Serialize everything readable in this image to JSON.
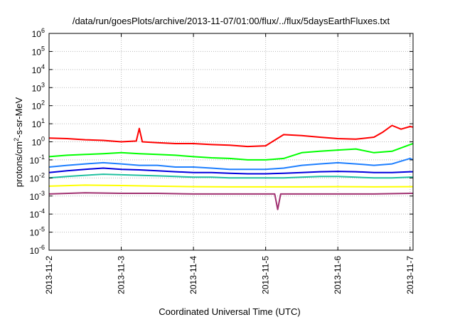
{
  "chart_data": {
    "type": "line",
    "title": "/data/run/goesPlots/archive/2013-11-07/01:00/flux/../flux/5daysEarthFluxes.txt",
    "xlabel": "Coordinated Universal Time (UTC)",
    "ylabel_parts": {
      "pre": "protons/cm",
      "sup": "2",
      "post": "-s-sr-MeV"
    },
    "y_scale": "log",
    "ylim": [
      1e-06,
      1000000.0
    ],
    "y_ticks": [
      {
        "base": "10",
        "exp": "-6",
        "value": -6
      },
      {
        "base": "10",
        "exp": "-5",
        "value": -5
      },
      {
        "base": "10",
        "exp": "-4",
        "value": -4
      },
      {
        "base": "10",
        "exp": "-3",
        "value": -3
      },
      {
        "base": "10",
        "exp": "-2",
        "value": -2
      },
      {
        "base": "10",
        "exp": "-1",
        "value": -1
      },
      {
        "base": "10",
        "exp": "0",
        "value": 0
      },
      {
        "base": "10",
        "exp": "1",
        "value": 1
      },
      {
        "base": "10",
        "exp": "2",
        "value": 2
      },
      {
        "base": "10",
        "exp": "3",
        "value": 3
      },
      {
        "base": "10",
        "exp": "4",
        "value": 4
      },
      {
        "base": "10",
        "exp": "5",
        "value": 5
      },
      {
        "base": "10",
        "exp": "6",
        "value": 6
      }
    ],
    "x_range": [
      "2013-11-02",
      "2013-11-07T01:00"
    ],
    "x_ticks": [
      "2013-11-2",
      "2013-11-3",
      "2013-11-4",
      "2013-11-5",
      "2013-11-6",
      "2013-11-7"
    ],
    "grid": true,
    "legend": "none",
    "series": [
      {
        "color": "#ff0000",
        "x": [
          "2013-11-02T00:00",
          "2013-11-02T06:00",
          "2013-11-02T12:00",
          "2013-11-02T18:00",
          "2013-11-03T00:00",
          "2013-11-03T05:00",
          "2013-11-03T06:00",
          "2013-11-03T07:00",
          "2013-11-03T12:00",
          "2013-11-03T18:00",
          "2013-11-04T00:00",
          "2013-11-04T06:00",
          "2013-11-04T12:00",
          "2013-11-04T18:00",
          "2013-11-05T00:00",
          "2013-11-05T06:00",
          "2013-11-05T12:00",
          "2013-11-05T18:00",
          "2013-11-06T00:00",
          "2013-11-06T06:00",
          "2013-11-06T12:00",
          "2013-11-06T15:00",
          "2013-11-06T18:00",
          "2013-11-06T21:00",
          "2013-11-07T00:00",
          "2013-11-07T01:00"
        ],
        "y": [
          1.6,
          1.5,
          1.3,
          1.2,
          1.0,
          1.1,
          5.5,
          1.0,
          0.9,
          0.8,
          0.8,
          0.7,
          0.65,
          0.55,
          0.6,
          2.5,
          2.2,
          1.8,
          1.5,
          1.4,
          1.8,
          3.5,
          8.0,
          5.0,
          7.0,
          6.5
        ]
      },
      {
        "color": "#00ff00",
        "x": [
          "2013-11-02T00:00",
          "2013-11-02T06:00",
          "2013-11-02T12:00",
          "2013-11-02T18:00",
          "2013-11-03T00:00",
          "2013-11-03T06:00",
          "2013-11-03T12:00",
          "2013-11-03T18:00",
          "2013-11-04T00:00",
          "2013-11-04T06:00",
          "2013-11-04T12:00",
          "2013-11-04T18:00",
          "2013-11-05T00:00",
          "2013-11-05T06:00",
          "2013-11-05T12:00",
          "2013-11-05T18:00",
          "2013-11-06T00:00",
          "2013-11-06T06:00",
          "2013-11-06T12:00",
          "2013-11-06T18:00",
          "2013-11-07T00:00",
          "2013-11-07T01:00"
        ],
        "y": [
          0.15,
          0.18,
          0.2,
          0.22,
          0.25,
          0.22,
          0.2,
          0.18,
          0.15,
          0.13,
          0.12,
          0.1,
          0.1,
          0.12,
          0.25,
          0.3,
          0.35,
          0.4,
          0.25,
          0.3,
          0.7,
          0.8
        ]
      },
      {
        "color": "#1e7fff",
        "x": [
          "2013-11-02T00:00",
          "2013-11-02T06:00",
          "2013-11-02T12:00",
          "2013-11-02T18:00",
          "2013-11-03T00:00",
          "2013-11-03T06:00",
          "2013-11-03T12:00",
          "2013-11-03T18:00",
          "2013-11-04T00:00",
          "2013-11-04T06:00",
          "2013-11-04T12:00",
          "2013-11-04T18:00",
          "2013-11-05T00:00",
          "2013-11-05T06:00",
          "2013-11-05T12:00",
          "2013-11-05T18:00",
          "2013-11-06T00:00",
          "2013-11-06T06:00",
          "2013-11-06T12:00",
          "2013-11-06T18:00",
          "2013-11-07T00:00",
          "2013-11-07T01:00"
        ],
        "y": [
          0.04,
          0.05,
          0.06,
          0.07,
          0.06,
          0.05,
          0.05,
          0.04,
          0.04,
          0.035,
          0.03,
          0.03,
          0.03,
          0.035,
          0.05,
          0.06,
          0.07,
          0.06,
          0.05,
          0.06,
          0.12,
          0.1
        ]
      },
      {
        "color": "#0000dd",
        "x": [
          "2013-11-02T00:00",
          "2013-11-02T06:00",
          "2013-11-02T12:00",
          "2013-11-02T18:00",
          "2013-11-03T00:00",
          "2013-11-03T06:00",
          "2013-11-03T12:00",
          "2013-11-03T18:00",
          "2013-11-04T00:00",
          "2013-11-04T06:00",
          "2013-11-04T12:00",
          "2013-11-04T18:00",
          "2013-11-05T00:00",
          "2013-11-05T06:00",
          "2013-11-05T12:00",
          "2013-11-05T18:00",
          "2013-11-06T00:00",
          "2013-11-06T06:00",
          "2013-11-06T12:00",
          "2013-11-06T18:00",
          "2013-11-07T00:00",
          "2013-11-07T01:00"
        ],
        "y": [
          0.02,
          0.025,
          0.03,
          0.035,
          0.03,
          0.028,
          0.025,
          0.022,
          0.02,
          0.02,
          0.018,
          0.017,
          0.017,
          0.018,
          0.02,
          0.022,
          0.023,
          0.022,
          0.02,
          0.02,
          0.022,
          0.022
        ]
      },
      {
        "color": "#20c0a0",
        "x": [
          "2013-11-02T00:00",
          "2013-11-02T06:00",
          "2013-11-02T12:00",
          "2013-11-02T18:00",
          "2013-11-03T00:00",
          "2013-11-03T06:00",
          "2013-11-03T12:00",
          "2013-11-03T18:00",
          "2013-11-04T00:00",
          "2013-11-04T06:00",
          "2013-11-04T12:00",
          "2013-11-04T18:00",
          "2013-11-05T00:00",
          "2013-11-05T06:00",
          "2013-11-05T12:00",
          "2013-11-05T18:00",
          "2013-11-06T00:00",
          "2013-11-06T06:00",
          "2013-11-06T12:00",
          "2013-11-06T18:00",
          "2013-11-07T00:00",
          "2013-11-07T01:00"
        ],
        "y": [
          0.01,
          0.012,
          0.014,
          0.016,
          0.015,
          0.014,
          0.013,
          0.012,
          0.011,
          0.011,
          0.01,
          0.01,
          0.01,
          0.01,
          0.011,
          0.012,
          0.012,
          0.011,
          0.01,
          0.01,
          0.011,
          0.011
        ]
      },
      {
        "color": "#ffff00",
        "x": [
          "2013-11-02T00:00",
          "2013-11-02T12:00",
          "2013-11-03T00:00",
          "2013-11-03T12:00",
          "2013-11-04T00:00",
          "2013-11-04T12:00",
          "2013-11-05T00:00",
          "2013-11-05T12:00",
          "2013-11-06T00:00",
          "2013-11-06T12:00",
          "2013-11-07T00:00",
          "2013-11-07T01:00"
        ],
        "y": [
          0.0035,
          0.004,
          0.0038,
          0.0035,
          0.0033,
          0.0032,
          0.0032,
          0.0032,
          0.0033,
          0.0032,
          0.0033,
          0.0033
        ]
      },
      {
        "color": "#a03070",
        "x": [
          "2013-11-02T00:00",
          "2013-11-02T12:00",
          "2013-11-03T00:00",
          "2013-11-03T12:00",
          "2013-11-04T00:00",
          "2013-11-04T12:00",
          "2013-11-05T00:00",
          "2013-11-05T03:00",
          "2013-11-05T04:00",
          "2013-11-05T05:00",
          "2013-11-05T12:00",
          "2013-11-06T00:00",
          "2013-11-06T12:00",
          "2013-11-07T00:00",
          "2013-11-07T01:00"
        ],
        "y": [
          0.0013,
          0.0015,
          0.0014,
          0.0014,
          0.0013,
          0.0013,
          0.0013,
          0.0013,
          0.00018,
          0.0013,
          0.0013,
          0.0013,
          0.0013,
          0.0014,
          0.0014
        ]
      }
    ]
  }
}
